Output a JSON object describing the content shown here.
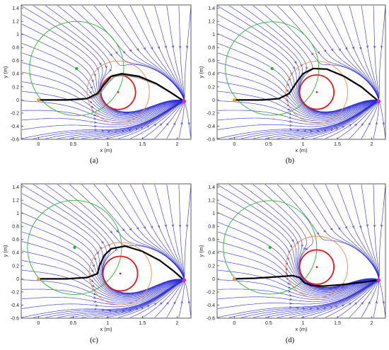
{
  "chart_data": [
    {
      "type": "line",
      "caption": "(a)",
      "xlabel": "x (m)",
      "ylabel": "y (m)",
      "xlim": [
        -0.25,
        2.2
      ],
      "ylim": [
        -0.6,
        1.45
      ],
      "xticks": [
        "0",
        "0.5",
        "1",
        "1.5",
        "2"
      ],
      "xtick_values": [
        0,
        0.5,
        1,
        1.5,
        2
      ],
      "yticks": [
        "-0.6",
        "-0.4",
        "-0.2",
        "0",
        "0.2",
        "0.4",
        "0.6",
        "0.8",
        "1",
        "1.2",
        "1.4"
      ],
      "ytick_values": [
        -0.6,
        -0.4,
        -0.2,
        0,
        0.2,
        0.4,
        0.6,
        0.8,
        1,
        1.2,
        1.4
      ],
      "start": [
        0,
        0
      ],
      "goal": [
        2.1,
        -0.02
      ],
      "green_point": [
        0.55,
        0.48
      ],
      "green_circle": {
        "center": [
          0.55,
          0.48
        ],
        "radius": 0.68
      },
      "obstacle": {
        "center": [
          1.15,
          0.12
        ],
        "radius_red": 0.25,
        "radius_orange": 0.45
      },
      "series": [
        {
          "values": [
            [
              0,
              0
            ],
            [
              0.3,
              0
            ],
            [
              0.6,
              0.01
            ],
            [
              0.8,
              0.04
            ],
            [
              0.9,
              0.12
            ],
            [
              1.0,
              0.26
            ],
            [
              1.1,
              0.36
            ],
            [
              1.25,
              0.38
            ],
            [
              1.45,
              0.34
            ],
            [
              1.7,
              0.24
            ],
            [
              1.9,
              0.12
            ],
            [
              2.1,
              -0.02
            ]
          ]
        },
        {
          "values": [
            [
              0,
              0
            ],
            [
              0.4,
              0
            ],
            [
              0.7,
              0.02
            ],
            [
              0.85,
              0.1
            ],
            [
              0.95,
              0.24
            ],
            [
              1.05,
              0.36
            ],
            [
              1.2,
              0.4
            ],
            [
              1.45,
              0.36
            ],
            [
              1.7,
              0.25
            ],
            [
              1.9,
              0.12
            ],
            [
              2.1,
              -0.02
            ]
          ]
        }
      ]
    },
    {
      "type": "line",
      "caption": "(b)",
      "xlabel": "x (m)",
      "ylabel": "y (m)",
      "xlim": [
        -0.25,
        2.2
      ],
      "ylim": [
        -0.6,
        1.45
      ],
      "xticks": [
        "0",
        "0.5",
        "1",
        "1.5",
        "2"
      ],
      "xtick_values": [
        0,
        0.5,
        1,
        1.5,
        2
      ],
      "yticks": [
        "-0.6",
        "-0.4",
        "-0.2",
        "0",
        "0.2",
        "0.4",
        "0.6",
        "0.8",
        "1",
        "1.2",
        "1.4"
      ],
      "ytick_values": [
        -0.6,
        -0.4,
        -0.2,
        0,
        0.2,
        0.4,
        0.6,
        0.8,
        1,
        1.2,
        1.4
      ],
      "start": [
        0,
        0
      ],
      "goal": [
        2.1,
        -0.02
      ],
      "green_point": [
        0.55,
        0.48
      ],
      "green_circle": {
        "center": [
          0.55,
          0.48
        ],
        "radius": 0.68
      },
      "obstacle": {
        "center": [
          1.2,
          0.12
        ],
        "radius_red": 0.25,
        "radius_orange": 0.45
      },
      "series": [
        {
          "values": [
            [
              0,
              0
            ],
            [
              0.4,
              0
            ],
            [
              0.65,
              0.02
            ],
            [
              0.8,
              0.1
            ],
            [
              0.9,
              0.26
            ],
            [
              1.0,
              0.4
            ],
            [
              1.15,
              0.48
            ],
            [
              1.35,
              0.47
            ],
            [
              1.6,
              0.36
            ],
            [
              1.85,
              0.2
            ],
            [
              2.1,
              -0.02
            ]
          ]
        }
      ]
    },
    {
      "type": "line",
      "caption": "(c)",
      "xlabel": "x (m)",
      "ylabel": "y (m)",
      "xlim": [
        -0.25,
        2.2
      ],
      "ylim": [
        -0.6,
        1.45
      ],
      "xticks": [
        "0",
        "0.5",
        "1",
        "1.5",
        "2"
      ],
      "xtick_values": [
        0,
        0.5,
        1,
        1.5,
        2
      ],
      "yticks": [
        "-0.6",
        "-0.4",
        "-0.2",
        "0",
        "0.2",
        "0.4",
        "0.6",
        "0.8",
        "1",
        "1.2",
        "1.4"
      ],
      "ytick_values": [
        -0.6,
        -0.4,
        -0.2,
        0,
        0.2,
        0.4,
        0.6,
        0.8,
        1,
        1.2,
        1.4
      ],
      "start": [
        0,
        0
      ],
      "goal": [
        2.1,
        -0.02
      ],
      "green_point": [
        0.52,
        0.48
      ],
      "green_circle": {
        "center": [
          0.52,
          0.48
        ],
        "radius": 0.68
      },
      "obstacle": {
        "center": [
          1.18,
          0.08
        ],
        "radius_red": 0.25,
        "radius_orange": 0.45
      },
      "series": [
        {
          "values": [
            [
              0,
              0
            ],
            [
              0.4,
              0
            ],
            [
              0.7,
              0.02
            ],
            [
              0.85,
              0.08
            ],
            [
              0.88,
              0.2
            ],
            [
              0.95,
              0.36
            ],
            [
              1.05,
              0.46
            ],
            [
              1.25,
              0.5
            ],
            [
              1.5,
              0.42
            ],
            [
              1.75,
              0.28
            ],
            [
              1.95,
              0.12
            ],
            [
              2.1,
              -0.02
            ]
          ]
        }
      ]
    },
    {
      "type": "line",
      "caption": "(d)",
      "xlabel": "x (m)",
      "ylabel": "y (m)",
      "xlim": [
        -0.25,
        2.2
      ],
      "ylim": [
        -0.6,
        1.45
      ],
      "xticks": [
        "0",
        "0.5",
        "1",
        "1.5",
        "2"
      ],
      "xtick_values": [
        0,
        0.5,
        1,
        1.5,
        2
      ],
      "yticks": [
        "-0.6",
        "-0.4",
        "-0.2",
        "0",
        "0.2",
        "0.4",
        "0.6",
        "0.8",
        "1",
        "1.2",
        "1.4"
      ],
      "ytick_values": [
        -0.6,
        -0.4,
        -0.2,
        0,
        0.2,
        0.4,
        0.6,
        0.8,
        1,
        1.2,
        1.4
      ],
      "start": [
        0,
        0
      ],
      "goal": [
        2.1,
        -0.02
      ],
      "green_point": [
        0.52,
        0.48
      ],
      "green_circle": {
        "center": [
          0.52,
          0.48
        ],
        "radius": 0.68
      },
      "obstacle": {
        "center": [
          1.2,
          0.18
        ],
        "radius_red": 0.25,
        "radius_orange": 0.45
      },
      "series": [
        {
          "values": [
            [
              0,
              0
            ],
            [
              0.3,
              0.01
            ],
            [
              0.6,
              0.03
            ],
            [
              0.85,
              0.05
            ],
            [
              0.95,
              0.02
            ],
            [
              1.02,
              -0.06
            ],
            [
              1.12,
              -0.1
            ],
            [
              1.3,
              -0.11
            ],
            [
              1.55,
              -0.09
            ],
            [
              1.8,
              -0.06
            ],
            [
              2.1,
              -0.02
            ]
          ]
        }
      ]
    }
  ],
  "colors": {
    "streamline": "#2b2bd4",
    "green": "#2cb52c",
    "red": "#e01818",
    "orange": "#f08a4a",
    "path": "#000000",
    "start": "#f0a020",
    "goal": "#e020e0"
  }
}
